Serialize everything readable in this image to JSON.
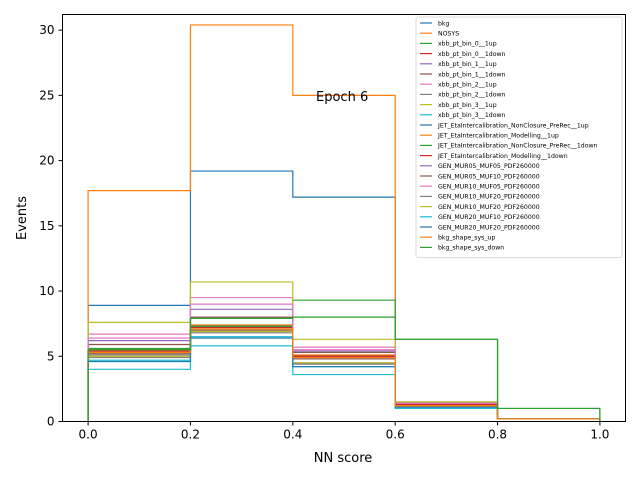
{
  "chart_data": {
    "type": "line",
    "drawstyle": "step-histogram",
    "title": "",
    "annotation": "Epoch 6",
    "xlabel": "NN score",
    "ylabel": "Events",
    "xlim": [
      -0.05,
      1.05
    ],
    "ylim": [
      0,
      31.2
    ],
    "xticks": [
      0.0,
      0.2,
      0.4,
      0.6,
      0.8,
      1.0
    ],
    "xtick_labels": [
      "0.0",
      "0.2",
      "0.4",
      "0.6",
      "0.8",
      "1.0"
    ],
    "yticks": [
      0,
      5,
      10,
      15,
      20,
      25,
      30
    ],
    "ytick_labels": [
      "0",
      "5",
      "10",
      "15",
      "20",
      "25",
      "30"
    ],
    "grid": false,
    "legend_position": "top-right",
    "bin_edges": [
      0.0,
      0.2,
      0.4,
      0.6,
      0.8,
      1.0
    ],
    "series": [
      {
        "name": "bkg",
        "color": "#1f77b4",
        "values": [
          8.9,
          19.2,
          17.2,
          1.2,
          0.2
        ]
      },
      {
        "name": "NOSYS",
        "color": "#ff7f0e",
        "values": [
          17.7,
          30.4,
          25.0,
          1.3,
          0.2
        ]
      },
      {
        "name": "xbb_pt_bin_0__1up",
        "color": "#2ca02c",
        "values": [
          5.6,
          8.0,
          9.3,
          6.3,
          1.0
        ]
      },
      {
        "name": "xbb_pt_bin_0__1down",
        "color": "#d62728",
        "values": [
          5.4,
          7.3,
          5.0,
          1.3,
          0.2
        ]
      },
      {
        "name": "xbb_pt_bin_1__1up",
        "color": "#9467bd",
        "values": [
          5.5,
          7.9,
          5.1,
          1.3,
          0.2
        ]
      },
      {
        "name": "xbb_pt_bin_1__1down",
        "color": "#8c564b",
        "values": [
          5.2,
          7.0,
          4.8,
          1.2,
          0.2
        ]
      },
      {
        "name": "xbb_pt_bin_2__1up",
        "color": "#e377c2",
        "values": [
          6.7,
          9.5,
          5.7,
          1.5,
          0.2
        ]
      },
      {
        "name": "xbb_pt_bin_2__1down",
        "color": "#7f7f7f",
        "values": [
          5.1,
          6.9,
          4.5,
          1.2,
          0.2
        ]
      },
      {
        "name": "xbb_pt_bin_3__1up",
        "color": "#bcbd22",
        "values": [
          7.6,
          10.7,
          6.3,
          1.5,
          0.2
        ]
      },
      {
        "name": "xbb_pt_bin_3__1down",
        "color": "#17becf",
        "values": [
          4.0,
          5.8,
          3.6,
          1.0,
          0.2
        ]
      },
      {
        "name": "JET_EtaIntercalibration_NonClosure_PreRec__1up",
        "color": "#1f77b4",
        "values": [
          5.4,
          7.3,
          5.0,
          1.3,
          0.2
        ]
      },
      {
        "name": "JET_EtaIntercalibration_Modelling__1up",
        "color": "#ff7f0e",
        "values": [
          5.5,
          7.4,
          5.1,
          1.3,
          0.2
        ]
      },
      {
        "name": "JET_EtaIntercalibration_NonClosure_PreRec__1down",
        "color": "#2ca02c",
        "values": [
          5.4,
          7.3,
          5.0,
          1.3,
          0.2
        ]
      },
      {
        "name": "JET_EtaIntercalibration_Modelling__1down",
        "color": "#d62728",
        "values": [
          5.4,
          7.2,
          5.0,
          1.3,
          0.2
        ]
      },
      {
        "name": "GEN_MUR05_MUF05_PDF260000",
        "color": "#9467bd",
        "values": [
          6.2,
          8.6,
          5.4,
          1.4,
          0.2
        ]
      },
      {
        "name": "GEN_MUR05_MUF10_PDF260000",
        "color": "#8c564b",
        "values": [
          5.9,
          8.0,
          5.3,
          1.4,
          0.2
        ]
      },
      {
        "name": "GEN_MUR10_MUF05_PDF260000",
        "color": "#e377c2",
        "values": [
          6.4,
          9.0,
          5.5,
          1.4,
          0.2
        ]
      },
      {
        "name": "GEN_MUR10_MUF20_PDF260000",
        "color": "#7f7f7f",
        "values": [
          4.9,
          6.8,
          4.4,
          1.2,
          0.2
        ]
      },
      {
        "name": "GEN_MUR10_MUF20_PDF260000",
        "color": "#bcbd22",
        "values": [
          5.0,
          6.9,
          4.5,
          1.2,
          0.2
        ]
      },
      {
        "name": "GEN_MUR20_MUF10_PDF260000",
        "color": "#17becf",
        "values": [
          4.7,
          6.5,
          4.2,
          1.1,
          0.2
        ]
      },
      {
        "name": "GEN_MUR20_MUF20_PDF260000",
        "color": "#1f77b4",
        "values": [
          4.6,
          6.4,
          4.2,
          1.1,
          0.2
        ]
      },
      {
        "name": "bkg_shape_sys_up",
        "color": "#ff7f0e",
        "values": [
          5.3,
          7.1,
          4.9,
          1.2,
          0.2
        ]
      },
      {
        "name": "bkg_shape_sys_down",
        "color": "#2ca02c",
        "values": [
          5.5,
          7.9,
          8.0,
          6.3,
          1.0
        ]
      }
    ]
  }
}
